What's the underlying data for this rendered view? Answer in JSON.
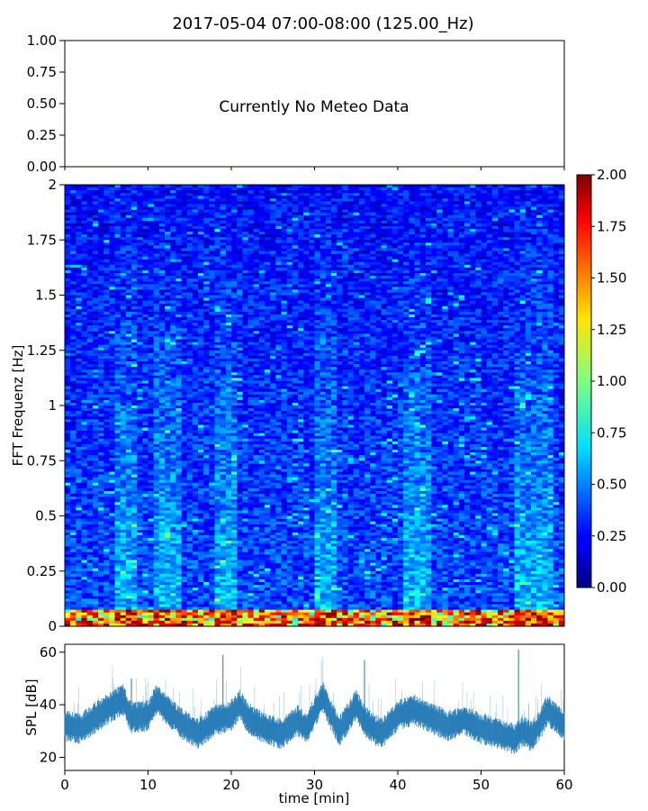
{
  "title": "2017-05-04 07:00-08:00 (125.00_Hz)",
  "chart_data": [
    {
      "type": "line",
      "panel": "meteo",
      "annotation": "Currently No Meteo Data",
      "ylim": [
        0,
        1
      ],
      "yticks": [
        "0.00",
        "0.25",
        "0.50",
        "0.75",
        "1.00"
      ],
      "xlim": [
        0,
        60
      ],
      "grid": false
    },
    {
      "type": "heatmap",
      "panel": "spectrogram",
      "ylabel": "FFT Frequenz [Hz]",
      "xlim": [
        0,
        60
      ],
      "ylim": [
        0,
        2
      ],
      "yticks": [
        "0",
        "0.25",
        "0.5",
        "0.75",
        "1",
        "1.25",
        "1.5",
        "1.75",
        "2"
      ],
      "colorbar": {
        "range": [
          0,
          2
        ],
        "ticks": [
          "0.00",
          "0.25",
          "0.50",
          "0.75",
          "1.00",
          "1.25",
          "1.50",
          "1.75",
          "2.00"
        ],
        "colormap": "jet"
      },
      "description_values": {
        "background_level": 0.3,
        "low_freq_peak_level": 2.0,
        "bright_columns_min": [
          7,
          12,
          19,
          31,
          42,
          55,
          57
        ]
      }
    },
    {
      "type": "line",
      "panel": "spl",
      "ylabel": "SPL [dB]",
      "xlabel": "time [min]",
      "xlim": [
        0,
        60
      ],
      "ylim": [
        15,
        63
      ],
      "xticks": [
        "0",
        "10",
        "20",
        "30",
        "40",
        "50",
        "60"
      ],
      "yticks": [
        "20",
        "40",
        "60"
      ],
      "color": "#1f77b4",
      "series": [
        {
          "x": [
            0,
            2,
            4,
            6,
            7,
            8,
            10,
            11,
            12,
            14,
            16,
            18,
            20,
            21,
            22,
            24,
            26,
            28,
            29,
            30,
            31,
            32,
            33,
            34,
            35,
            36,
            37,
            38,
            40,
            42,
            44,
            46,
            48,
            50,
            52,
            54,
            55,
            56,
            57,
            58,
            60
          ],
          "values": [
            32,
            31,
            36,
            40,
            42,
            35,
            36,
            42,
            39,
            33,
            29,
            34,
            36,
            40,
            35,
            31,
            29,
            34,
            31,
            37,
            43,
            36,
            30,
            35,
            40,
            34,
            31,
            29,
            36,
            38,
            35,
            32,
            34,
            31,
            29,
            27,
            30,
            28,
            32,
            38,
            32
          ],
          "spikes": [
            [
              54.5,
              61
            ],
            [
              36,
              57
            ],
            [
              19,
              59
            ],
            [
              8,
              50
            ]
          ]
        }
      ]
    }
  ]
}
